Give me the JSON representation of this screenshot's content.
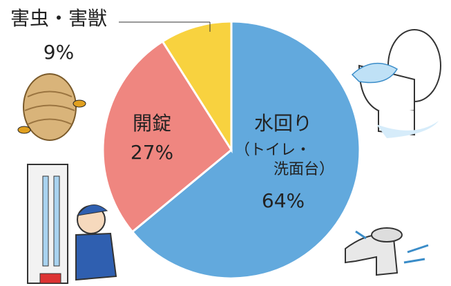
{
  "chart_data": {
    "type": "pie",
    "categories": [
      [
        "水回り",
        "（トイレ・",
        "洗面台）"
      ],
      [
        "開錠"
      ],
      [
        "害虫・害獣"
      ]
    ],
    "values": [
      64,
      27,
      9
    ],
    "value_labels": [
      "64%",
      "27%",
      "9%"
    ],
    "colors": [
      "#62a9dd",
      "#ef8680",
      "#f8d23f"
    ]
  }
}
